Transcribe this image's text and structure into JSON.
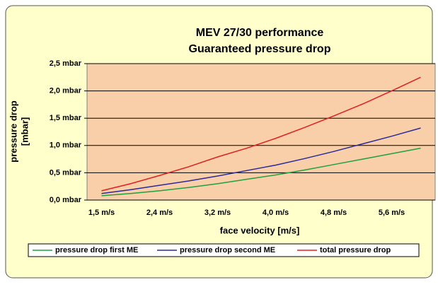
{
  "chart_data": {
    "type": "line",
    "title": "MEV 27/30 performance",
    "subtitle": "Guaranteed pressure drop",
    "xlabel": "face velocity [m/s]",
    "ylabel": [
      "pressure drop",
      "[mbar]"
    ],
    "categories": [
      "1,5 m/s",
      null,
      "2,4 m/s",
      null,
      "3,2 m/s",
      null,
      "4,0 m/s",
      null,
      "4,8 m/s",
      null,
      "5,6 m/s",
      null
    ],
    "series": [
      {
        "name": "pressure drop first ME",
        "color": "#20a040",
        "values": [
          0.08,
          0.12,
          0.17,
          0.23,
          0.3,
          0.38,
          0.46,
          0.55,
          0.65,
          0.75,
          0.85,
          0.95
        ]
      },
      {
        "name": "pressure drop second ME",
        "color": "#2a2a9a",
        "values": [
          0.12,
          0.19,
          0.27,
          0.35,
          0.44,
          0.54,
          0.64,
          0.76,
          0.89,
          1.03,
          1.17,
          1.32
        ]
      },
      {
        "name": "total pressure drop",
        "color": "#e02020",
        "values": [
          0.17,
          0.3,
          0.45,
          0.61,
          0.79,
          0.95,
          1.13,
          1.33,
          1.54,
          1.76,
          2.0,
          2.25
        ]
      }
    ],
    "ylim": [
      0,
      2.5
    ],
    "yticks": [
      {
        "value": 0,
        "label": "0,0 mbar"
      },
      {
        "value": 0.5,
        "label": "0,5 mbar"
      },
      {
        "value": 1,
        "label": "1,0 mbar"
      },
      {
        "value": 1.5,
        "label": "1,5 mbar"
      },
      {
        "value": 2,
        "label": "2,0 mbar"
      },
      {
        "value": 2.5,
        "label": "2,5 mbar"
      }
    ],
    "grid": true,
    "legend": "bottom"
  }
}
